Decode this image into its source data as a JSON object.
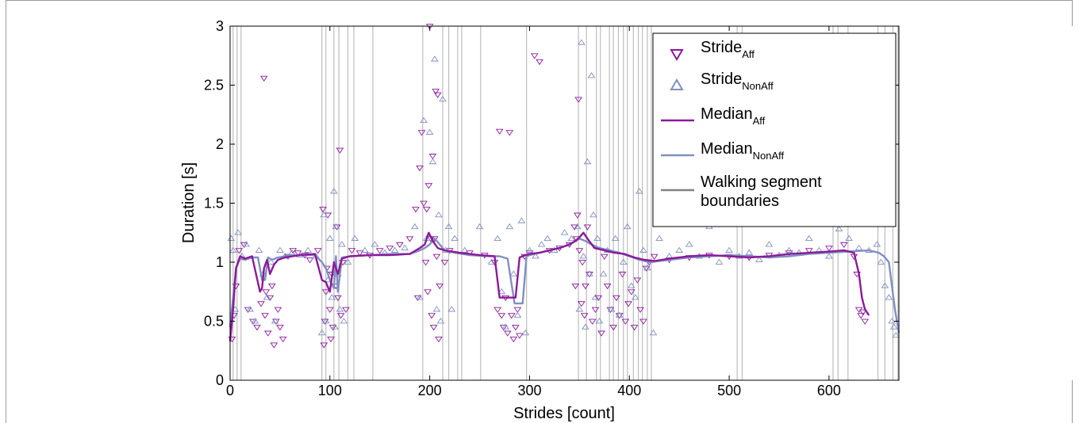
{
  "chart_data": {
    "type": "scatter",
    "xlabel": "Strides [count]",
    "ylabel": "Duration [s]",
    "xlim": [
      0,
      670
    ],
    "ylim": [
      0,
      3
    ],
    "x_ticks": [
      "0",
      "100",
      "200",
      "300",
      "400",
      "500",
      "600"
    ],
    "y_ticks": [
      "0",
      "0.5",
      "1",
      "1.5",
      "2",
      "2.5",
      "3"
    ],
    "legend_position": "top-right",
    "grid": false,
    "colors": {
      "aff": "#8a1a9b",
      "nonaff": "#8090c0",
      "boundary": "#bdbdbd",
      "boundary_legend": "#808080"
    },
    "legend": [
      {
        "key": "stride_aff",
        "label": "Stride",
        "sub": "Aff",
        "marker": "triangle-down"
      },
      {
        "key": "stride_nonaff",
        "label": "Stride",
        "sub": "NonAff",
        "marker": "triangle-up"
      },
      {
        "key": "median_aff",
        "label": "Median",
        "sub": "Aff",
        "marker": "line"
      },
      {
        "key": "median_nonaff",
        "label": "Median",
        "sub": "NonAff",
        "marker": "line"
      },
      {
        "key": "boundaries",
        "label": "Walking segment",
        "label2": "boundaries",
        "marker": "line"
      }
    ],
    "segment_boundaries": [
      3,
      7,
      11,
      92,
      96,
      104,
      109,
      118,
      124,
      143,
      193,
      213,
      219,
      228,
      232,
      251,
      297,
      349,
      357,
      367,
      371,
      380,
      384,
      389,
      394,
      398,
      404,
      409,
      413,
      418,
      422,
      508,
      513,
      604,
      609,
      619,
      649,
      656,
      664,
      669
    ],
    "series": [
      {
        "name": "Median_Aff",
        "x": [
          0,
          3,
          6,
          10,
          15,
          22,
          26,
          30,
          32,
          34,
          37,
          40,
          44,
          48,
          55,
          70,
          85,
          92,
          96,
          100,
          104,
          108,
          112,
          120,
          140,
          160,
          180,
          190,
          195,
          199,
          203,
          208,
          215,
          230,
          250,
          265,
          270,
          274,
          280,
          286,
          290,
          296,
          300,
          310,
          320,
          330,
          340,
          346,
          351,
          354,
          358,
          365,
          375,
          385,
          395,
          405,
          415,
          425,
          440,
          460,
          480,
          500,
          520,
          540,
          560,
          580,
          600,
          615,
          625,
          630,
          633,
          636,
          640
        ],
        "y": [
          0.33,
          0.6,
          0.95,
          1.05,
          1.03,
          1.05,
          0.9,
          0.75,
          0.78,
          0.95,
          1.02,
          0.9,
          0.98,
          1.02,
          1.04,
          1.06,
          1.07,
          0.85,
          0.83,
          0.75,
          1.0,
          0.9,
          1.03,
          1.05,
          1.06,
          1.06,
          1.07,
          1.12,
          1.15,
          1.25,
          1.18,
          1.12,
          1.1,
          1.08,
          1.06,
          1.05,
          0.7,
          0.7,
          0.7,
          0.7,
          1.04,
          1.06,
          1.07,
          1.08,
          1.1,
          1.12,
          1.15,
          1.18,
          1.22,
          1.25,
          1.2,
          1.12,
          1.1,
          1.08,
          1.07,
          1.04,
          1.02,
          1.01,
          1.03,
          1.05,
          1.06,
          1.05,
          1.04,
          1.05,
          1.07,
          1.08,
          1.09,
          1.1,
          1.08,
          0.9,
          0.7,
          0.6,
          0.55
        ]
      },
      {
        "name": "Median_NonAff",
        "x": [
          0,
          3,
          6,
          10,
          15,
          22,
          28,
          32,
          35,
          38,
          42,
          48,
          55,
          70,
          85,
          92,
          96,
          100,
          104,
          106,
          108,
          112,
          120,
          140,
          160,
          180,
          190,
          195,
          200,
          205,
          210,
          215,
          225,
          240,
          260,
          270,
          278,
          285,
          290,
          293,
          297,
          300,
          310,
          320,
          330,
          340,
          350,
          356,
          362,
          370,
          380,
          390,
          400,
          410,
          420,
          440,
          460,
          480,
          500,
          520,
          540,
          560,
          580,
          600,
          620,
          640,
          650,
          655,
          660,
          663,
          666,
          670
        ],
        "y": [
          0.45,
          0.7,
          0.95,
          1.03,
          1.02,
          1.04,
          1.04,
          0.85,
          0.85,
          1.04,
          1.02,
          1.04,
          1.05,
          1.06,
          1.06,
          1.0,
          0.95,
          0.85,
          0.78,
          1.05,
          0.75,
          1.04,
          1.05,
          1.06,
          1.07,
          1.07,
          1.1,
          1.12,
          1.15,
          1.2,
          1.15,
          1.1,
          1.08,
          1.06,
          1.05,
          1.05,
          1.03,
          0.65,
          0.65,
          0.65,
          1.05,
          1.06,
          1.08,
          1.1,
          1.12,
          1.15,
          1.2,
          1.18,
          1.15,
          1.12,
          1.1,
          1.08,
          1.05,
          1.02,
          1.0,
          1.02,
          1.04,
          1.05,
          1.06,
          1.05,
          1.04,
          1.05,
          1.07,
          1.08,
          1.09,
          1.1,
          1.08,
          1.05,
          1.0,
          0.8,
          0.6,
          0.4
        ]
      }
    ],
    "scatter": [
      {
        "name": "Stride_Aff",
        "x": [
          2,
          4,
          6,
          9,
          14,
          18,
          23,
          27,
          31,
          34,
          35,
          36,
          38,
          40,
          42,
          44,
          46,
          48,
          50,
          53,
          58,
          63,
          68,
          75,
          80,
          88,
          93,
          94,
          95,
          96,
          97,
          98,
          100,
          101,
          102,
          103,
          106,
          107,
          108,
          110,
          111,
          113,
          116,
          122,
          130,
          140,
          150,
          160,
          170,
          180,
          186,
          188,
          190,
          192,
          194,
          196,
          197,
          198,
          199,
          200,
          201,
          202,
          203,
          204,
          205,
          206,
          207,
          208,
          209,
          210,
          215,
          220,
          240,
          255,
          265,
          268,
          270,
          272,
          274,
          276,
          278,
          280,
          282,
          284,
          286,
          288,
          290,
          295,
          300,
          305,
          310,
          320,
          330,
          340,
          345,
          346,
          347,
          348,
          349,
          350,
          352,
          353,
          355,
          356,
          358,
          360,
          363,
          366,
          369,
          372,
          375,
          378,
          381,
          384,
          387,
          390,
          393,
          396,
          399,
          402,
          405,
          408,
          411,
          414,
          417,
          420,
          425,
          440,
          460,
          480,
          500,
          520,
          540,
          560,
          580,
          600,
          615,
          625,
          628,
          630,
          632,
          634,
          636
        ],
        "y": [
          0.35,
          0.55,
          0.8,
          1.1,
          1.15,
          0.6,
          0.5,
          0.45,
          0.65,
          2.56,
          0.55,
          0.75,
          0.4,
          0.7,
          0.8,
          0.3,
          0.5,
          0.6,
          0.45,
          0.35,
          1.05,
          1.1,
          1.08,
          1.06,
          1.02,
          1.1,
          1.45,
          0.3,
          0.5,
          0.75,
          0.95,
          1.4,
          0.6,
          0.35,
          0.9,
          0.45,
          0.8,
          1.3,
          0.7,
          1.95,
          0.55,
          1.0,
          0.6,
          1.1,
          1.08,
          1.06,
          1.1,
          1.12,
          1.15,
          1.2,
          1.45,
          0.7,
          1.8,
          2.1,
          1.5,
          1.0,
          1.45,
          0.75,
          1.65,
          3.0,
          1.2,
          0.55,
          1.9,
          0.45,
          1.2,
          2.45,
          1.05,
          2.42,
          0.35,
          0.8,
          1.0,
          1.1,
          1.08,
          1.06,
          1.0,
          0.6,
          2.11,
          0.55,
          0.45,
          0.7,
          0.4,
          2.1,
          0.55,
          0.35,
          0.45,
          0.6,
          0.38,
          1.05,
          1.08,
          2.75,
          2.7,
          1.1,
          1.12,
          1.15,
          1.3,
          0.8,
          1.2,
          1.4,
          2.38,
          1.1,
          0.65,
          1.0,
          0.55,
          0.8,
          1.3,
          0.9,
          0.5,
          0.6,
          0.7,
          0.4,
          1.05,
          0.8,
          0.6,
          0.45,
          0.7,
          0.55,
          0.9,
          0.5,
          0.65,
          0.75,
          0.45,
          0.85,
          0.6,
          0.5,
          0.95,
          1.0,
          1.05,
          1.02,
          1.04,
          1.06,
          1.05,
          1.04,
          1.06,
          1.08,
          1.1,
          1.12,
          1.15,
          1.05,
          0.9,
          0.6,
          0.55,
          0.58,
          0.5
        ]
      },
      {
        "name": "Stride_NonAff",
        "x": [
          1,
          3,
          5,
          8,
          12,
          16,
          20,
          25,
          29,
          33,
          37,
          41,
          45,
          50,
          55,
          62,
          70,
          78,
          86,
          92,
          94,
          96,
          98,
          100,
          102,
          104,
          105,
          106,
          108,
          110,
          112,
          114,
          118,
          125,
          135,
          145,
          155,
          165,
          175,
          185,
          190,
          194,
          197,
          200,
          203,
          205,
          207,
          209,
          211,
          213,
          216,
          219,
          222,
          225,
          235,
          250,
          262,
          268,
          272,
          276,
          280,
          284,
          288,
          292,
          296,
          300,
          306,
          312,
          318,
          325,
          335,
          342,
          348,
          350,
          352,
          354,
          356,
          358,
          360,
          362,
          364,
          366,
          368,
          370,
          374,
          378,
          382,
          386,
          390,
          394,
          398,
          402,
          406,
          410,
          414,
          418,
          424,
          430,
          440,
          450,
          460,
          470,
          480,
          490,
          500,
          510,
          520,
          530,
          540,
          550,
          560,
          570,
          580,
          590,
          600,
          610,
          620,
          630,
          640,
          648,
          652,
          656,
          660,
          663,
          665,
          667
        ],
        "y": [
          1.2,
          1.1,
          0.6,
          1.25,
          1.05,
          1.15,
          0.6,
          0.5,
          1.1,
          0.9,
          0.7,
          1.0,
          0.5,
          1.1,
          1.05,
          1.08,
          1.06,
          1.1,
          1.05,
          0.4,
          1.4,
          0.5,
          0.85,
          1.2,
          0.7,
          1.6,
          0.45,
          1.3,
          0.9,
          0.6,
          1.15,
          0.5,
          1.0,
          1.2,
          1.1,
          1.15,
          1.08,
          1.1,
          1.12,
          1.3,
          0.7,
          2.2,
          1.2,
          2.1,
          1.85,
          2.72,
          0.6,
          1.4,
          0.5,
          2.38,
          1.1,
          1.3,
          0.6,
          1.2,
          1.1,
          1.3,
          1.0,
          1.2,
          0.75,
          0.45,
          1.3,
          0.9,
          0.55,
          1.35,
          0.4,
          1.1,
          1.05,
          1.15,
          1.2,
          1.1,
          1.25,
          1.2,
          1.3,
          0.6,
          2.86,
          1.05,
          0.45,
          1.85,
          0.9,
          2.58,
          1.4,
          0.7,
          1.2,
          0.5,
          0.9,
          1.1,
          0.6,
          1.2,
          0.55,
          1.0,
          1.3,
          0.8,
          0.7,
          1.6,
          1.1,
          0.95,
          0.4,
          1.2,
          1.05,
          1.1,
          1.15,
          1.05,
          1.3,
          1.0,
          1.1,
          1.05,
          1.08,
          1.02,
          1.15,
          1.06,
          1.1,
          1.08,
          1.2,
          1.1,
          1.05,
          1.28,
          1.2,
          1.12,
          1.1,
          1.15,
          1.0,
          0.8,
          0.7,
          0.5,
          0.45,
          0.38
        ]
      }
    ]
  }
}
